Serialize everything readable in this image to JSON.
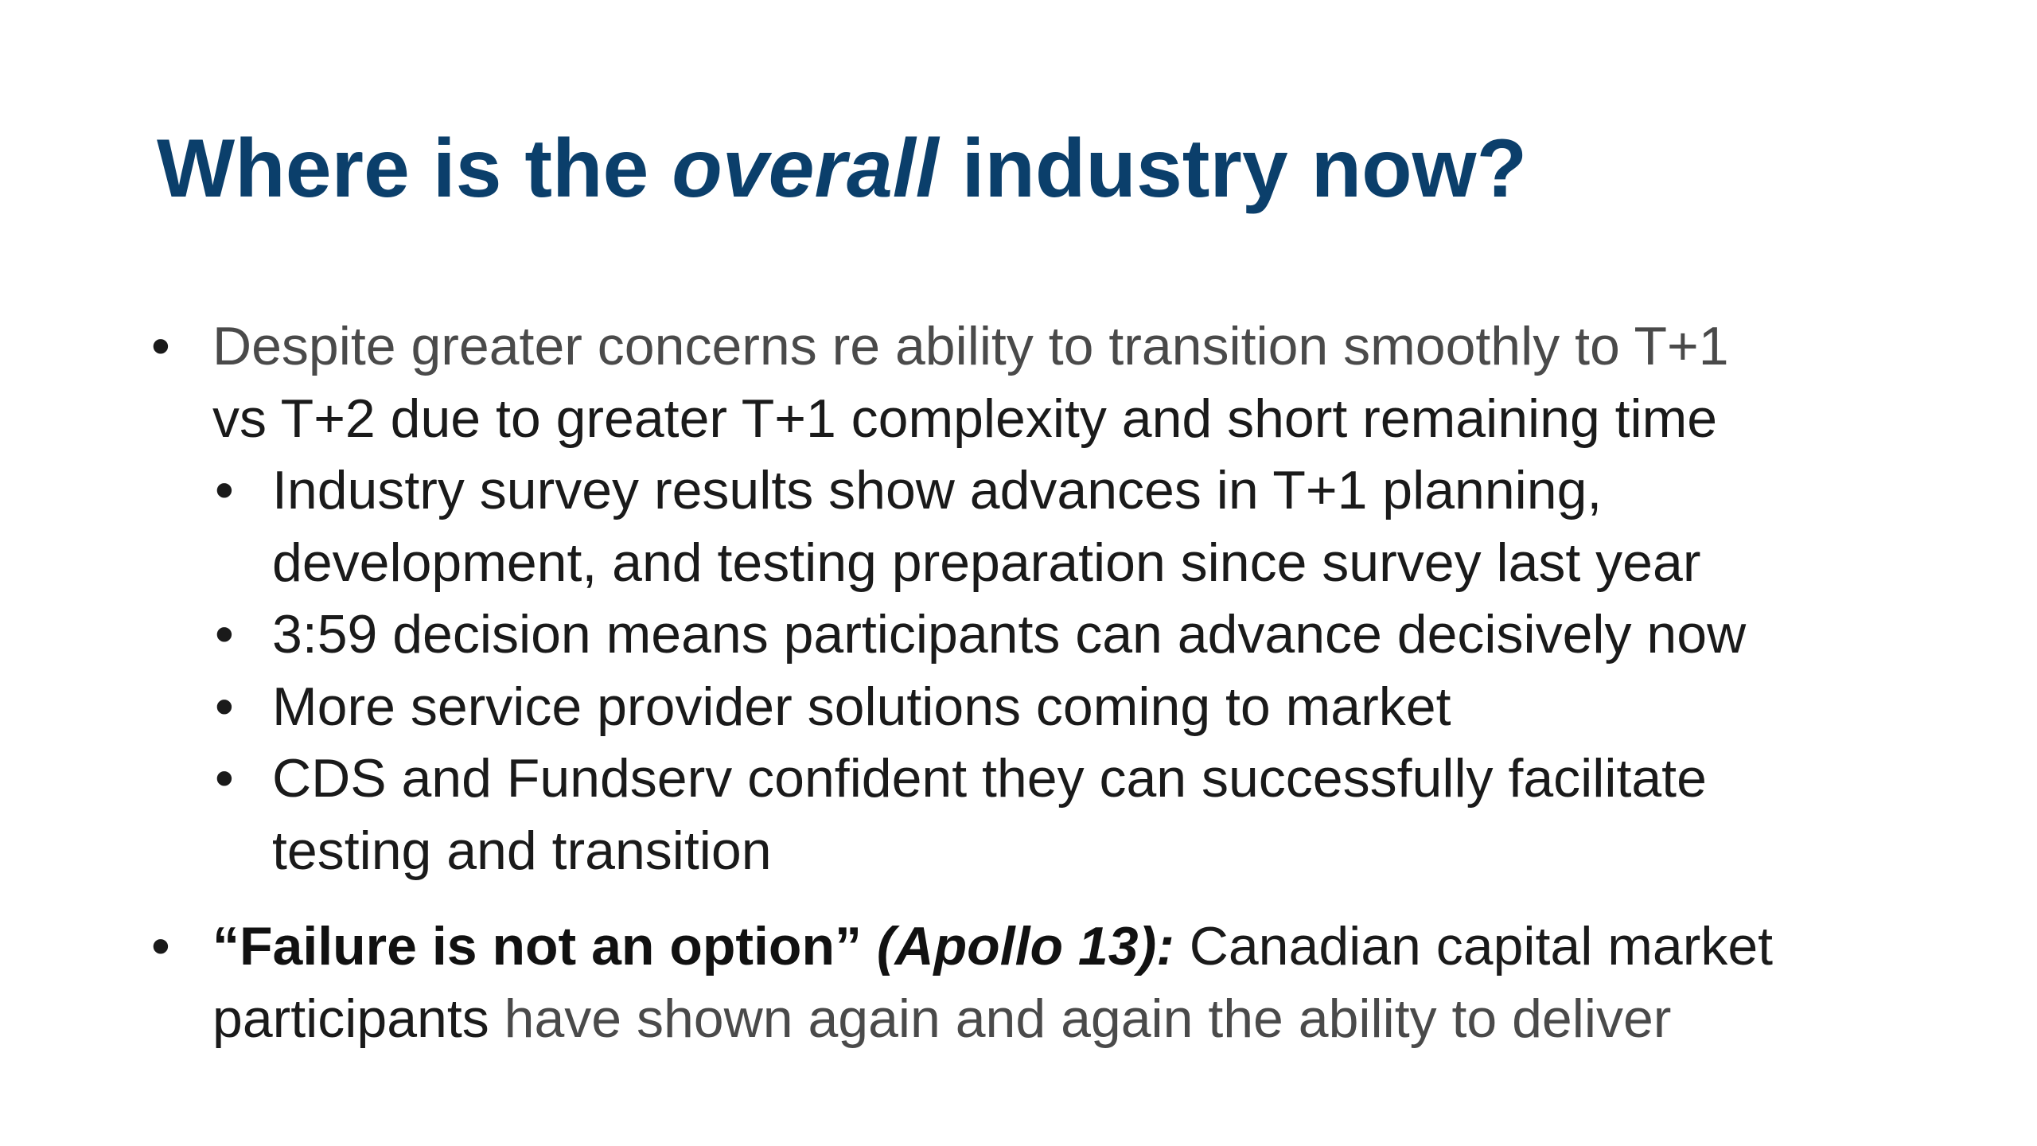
{
  "slide": {
    "title": {
      "part1": "Where is the ",
      "part2": "overall",
      "part3": " industry now?"
    },
    "bullet_glyph": "•",
    "bullets": [
      {
        "line1": "Despite greater concerns re ability to transition smoothly to T+1",
        "line2": "vs T+2 due to greater T+1 complexity and short remaining time",
        "sub": [
          {
            "line1": "Industry survey results show advances in T+1 planning,",
            "line2": "development, and testing preparation since survey last year"
          },
          {
            "line1": "3:59 decision means participants can advance decisively now"
          },
          {
            "line1": "More service provider solutions coming to market"
          },
          {
            "line1": "CDS and Fundserv confident they can successfully facilitate",
            "line2": "testing and transition"
          }
        ]
      },
      {
        "quote": "“Failure is not an option”",
        "source": " (Apollo 13):",
        "line1_rest": " Canadian capital market",
        "line2_start": "participants",
        "line2_rest": " have shown again and again the ability to deliver"
      }
    ]
  }
}
